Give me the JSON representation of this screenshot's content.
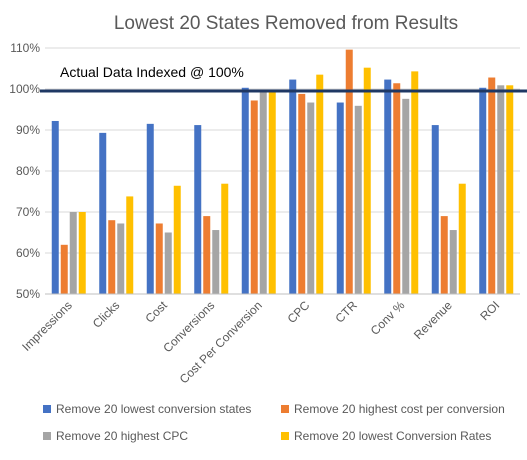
{
  "chart_data": {
    "type": "bar",
    "title": "Lowest 20 States Removed from Results",
    "xlabel": "",
    "ylabel": "",
    "ylim": [
      50,
      110
    ],
    "yticks": [
      "50%",
      "60%",
      "70%",
      "80%",
      "90%",
      "100%",
      "110%"
    ],
    "ytick_values": [
      50,
      60,
      70,
      80,
      90,
      100,
      110
    ],
    "grid": true,
    "legend_position": "bottom",
    "categories": [
      "Impressions",
      "Clicks",
      "Cost",
      "Conversions",
      "Cost Per Conversion",
      "CPC",
      "CTR",
      "Conv %",
      "Revenue",
      "ROI"
    ],
    "series": [
      {
        "name": "Remove 20 lowest conversion states",
        "color": "#4472C4",
        "values": [
          92.2,
          89.3,
          91.5,
          91.2,
          100.3,
          102.3,
          96.7,
          102.3,
          91.2,
          100.3
        ]
      },
      {
        "name": "Remove 20 highest cost per conversion",
        "color": "#ED7D31",
        "values": [
          62.0,
          68.0,
          67.2,
          69.0,
          97.2,
          98.8,
          109.6,
          101.4,
          69.0,
          102.8
        ]
      },
      {
        "name": "Remove 20 highest CPC",
        "color": "#A5A5A5",
        "values": [
          70.0,
          67.2,
          65.0,
          65.6,
          99.3,
          96.7,
          95.9,
          97.6,
          65.6,
          100.9
        ]
      },
      {
        "name": "Remove 20 lowest Conversion Rates",
        "color": "#FFC000",
        "values": [
          70.0,
          73.8,
          76.4,
          76.9,
          99.5,
          103.5,
          105.2,
          104.3,
          76.9,
          100.9
        ]
      }
    ],
    "reference_line": {
      "label": "Actual Data Indexed @ 100%",
      "value": 100,
      "color": "#1F3864"
    },
    "colors": {
      "grid": "#D9D9D9",
      "text": "#595959",
      "axis": "#BFBFBF"
    }
  }
}
